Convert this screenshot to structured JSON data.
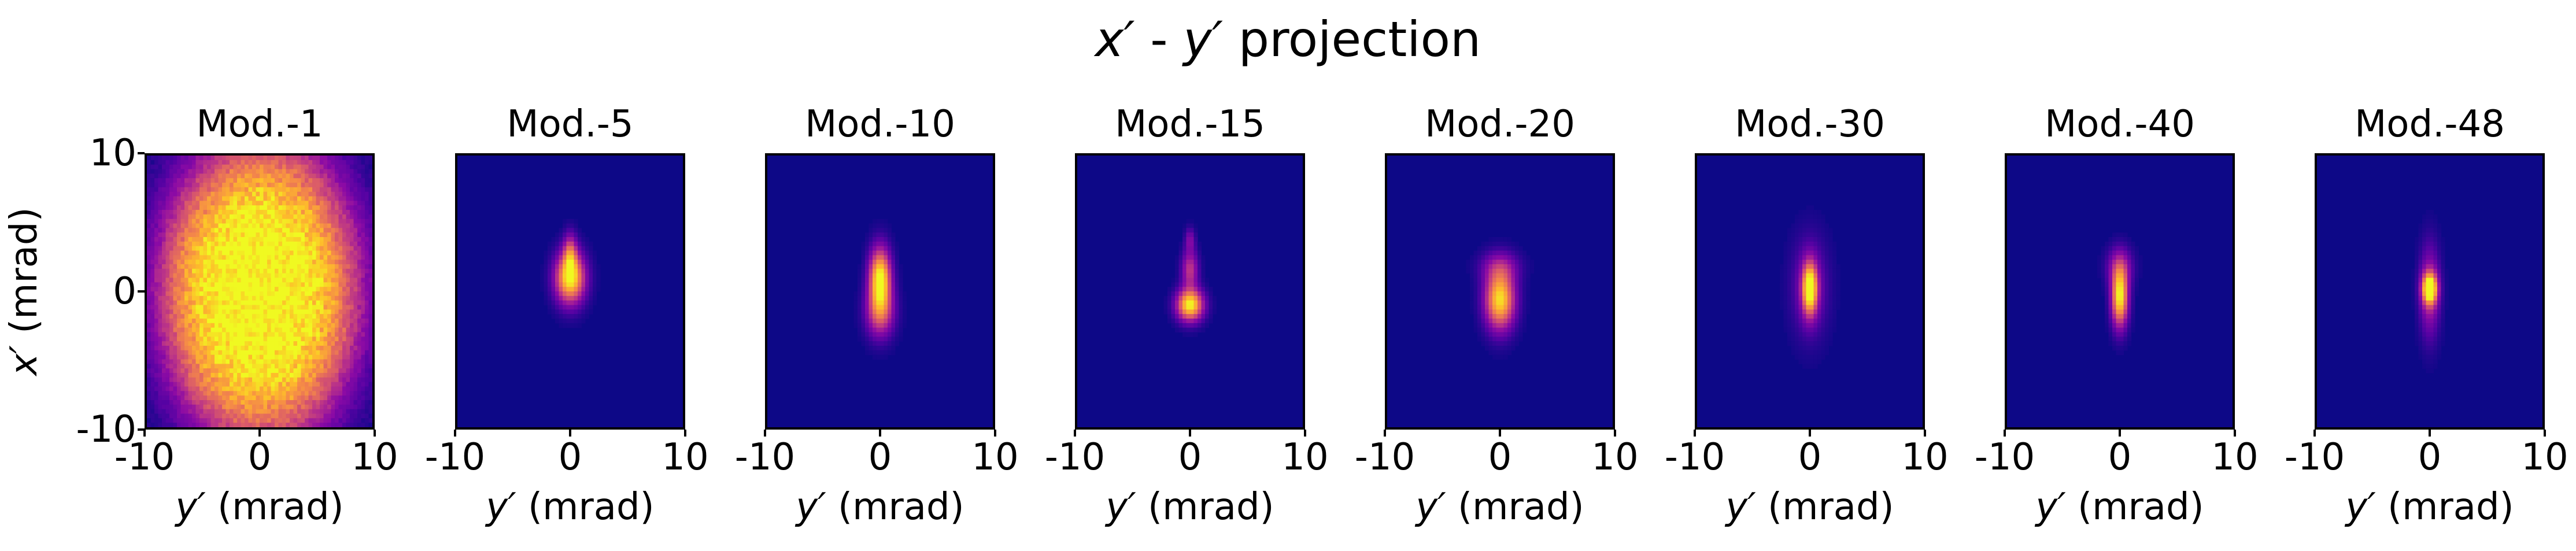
{
  "figure": {
    "title_main": "x′",
    "title_sep": " - ",
    "title_second": "y′",
    "title_rest": " projection"
  },
  "chart_data": {
    "type": "heatmap",
    "colormap": "plasma",
    "xlabel_var": "y′",
    "xlabel_unit": " (mrad)",
    "ylabel_var": "x′",
    "ylabel_unit": " (mrad)",
    "xlim": [
      -10,
      10
    ],
    "ylim": [
      -10,
      10
    ],
    "xticks": [
      "-10",
      "0",
      "10"
    ],
    "yticks": [
      "10",
      "0",
      "-10"
    ],
    "panels": [
      {
        "title": "Mod.-1",
        "blobs": [
          {
            "x": 0,
            "y": 0,
            "sx": 7.5,
            "sy": 9.5,
            "amp": 1.0,
            "exp": 4
          }
        ]
      },
      {
        "title": "Mod.-5",
        "blobs": [
          {
            "x": 0,
            "y": 1.0,
            "sx": 0.9,
            "sy": 1.3,
            "amp": 1.0,
            "exp": 2
          },
          {
            "x": 0,
            "y": 2.8,
            "sx": 0.4,
            "sy": 1.0,
            "amp": 0.45,
            "exp": 2
          }
        ]
      },
      {
        "title": "Mod.-10",
        "blobs": [
          {
            "x": 0,
            "y": 1.0,
            "sx": 0.65,
            "sy": 1.5,
            "amp": 1.0,
            "exp": 2
          },
          {
            "x": 0,
            "y": -1.5,
            "sx": 0.85,
            "sy": 1.3,
            "amp": 0.55,
            "exp": 2
          }
        ]
      },
      {
        "title": "Mod.-15",
        "blobs": [
          {
            "x": 0,
            "y": -1.0,
            "sx": 0.8,
            "sy": 0.8,
            "amp": 1.0,
            "exp": 2
          },
          {
            "x": 0,
            "y": 1.6,
            "sx": 0.5,
            "sy": 1.0,
            "amp": 0.45,
            "exp": 2
          },
          {
            "x": 0,
            "y": 3.8,
            "sx": 0.3,
            "sy": 0.6,
            "amp": 0.25,
            "exp": 2
          }
        ]
      },
      {
        "title": "Mod.-20",
        "blobs": [
          {
            "x": 0,
            "y": -0.6,
            "sx": 0.9,
            "sy": 1.5,
            "amp": 0.95,
            "exp": 2
          },
          {
            "x": 0,
            "y": 1.8,
            "sx": 1.2,
            "sy": 0.8,
            "amp": 0.25,
            "exp": 2
          }
        ]
      },
      {
        "title": "Mod.-30",
        "blobs": [
          {
            "x": 0,
            "y": 0.2,
            "sx": 0.45,
            "sy": 1.3,
            "amp": 1.0,
            "exp": 2
          },
          {
            "x": 0,
            "y": 0.3,
            "sx": 1.1,
            "sy": 2.5,
            "amp": 0.25,
            "exp": 2
          }
        ]
      },
      {
        "title": "Mod.-40",
        "blobs": [
          {
            "x": 0,
            "y": -0.4,
            "sx": 0.5,
            "sy": 1.5,
            "amp": 1.0,
            "exp": 2
          },
          {
            "x": 0,
            "y": 1.8,
            "sx": 0.8,
            "sy": 1.0,
            "amp": 0.3,
            "exp": 2
          }
        ]
      },
      {
        "title": "Mod.-48",
        "blobs": [
          {
            "x": 0,
            "y": 0.2,
            "sx": 0.45,
            "sy": 0.75,
            "amp": 1.0,
            "exp": 2
          },
          {
            "x": 0,
            "y": 0,
            "sx": 0.6,
            "sy": 2.3,
            "amp": 0.4,
            "exp": 2
          }
        ]
      }
    ]
  }
}
